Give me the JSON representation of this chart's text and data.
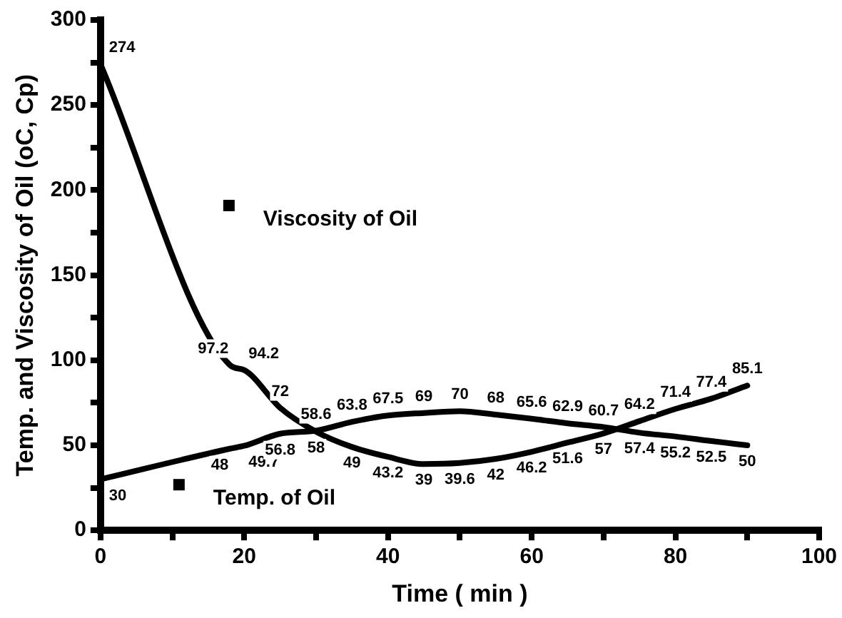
{
  "chart_data": {
    "type": "line",
    "xlabel": "Time ( min )",
    "ylabel": "Temp. and Viscosity of Oil (oC, Cp)",
    "x": [
      0,
      18,
      20,
      25,
      30,
      35,
      40,
      45,
      50,
      55,
      60,
      65,
      70,
      75,
      80,
      85,
      90
    ],
    "series": [
      {
        "name": "Viscosity of Oil",
        "color": "#000000",
        "values": [
          274,
          97.2,
          94.2,
          72,
          58,
          49,
          43.2,
          39,
          39.6,
          42,
          46.2,
          51.6,
          57,
          64.2,
          71.4,
          77.4,
          85.1
        ]
      },
      {
        "name": "Temp. of Oil",
        "color": "#000000",
        "values": [
          30,
          48,
          49.7,
          56.8,
          58.6,
          63.8,
          67.5,
          69,
          70,
          68,
          65.6,
          62.9,
          60.7,
          57.4,
          55.2,
          52.5,
          50
        ]
      }
    ],
    "xlim": [
      0,
      100
    ],
    "xticks": [
      0,
      {
        "value": 10,
        "label": null
      },
      20,
      {
        "value": 30,
        "label": null
      },
      40,
      {
        "value": 50,
        "label": null
      },
      60,
      {
        "value": 70,
        "label": null
      },
      80,
      {
        "value": 90,
        "label": null
      },
      100
    ],
    "ylim": [
      0,
      300
    ],
    "yticks": [
      0,
      {
        "value": 25,
        "label": null
      },
      50,
      {
        "value": 75,
        "label": null
      },
      100,
      {
        "value": 125,
        "label": null
      },
      150,
      {
        "value": 175,
        "label": null
      },
      200,
      {
        "value": 225,
        "label": null
      },
      250,
      {
        "value": 275,
        "label": null
      },
      300
    ],
    "grid": false,
    "legend": "left",
    "marker": "none",
    "line_style": "solid",
    "data_labels": true
  }
}
